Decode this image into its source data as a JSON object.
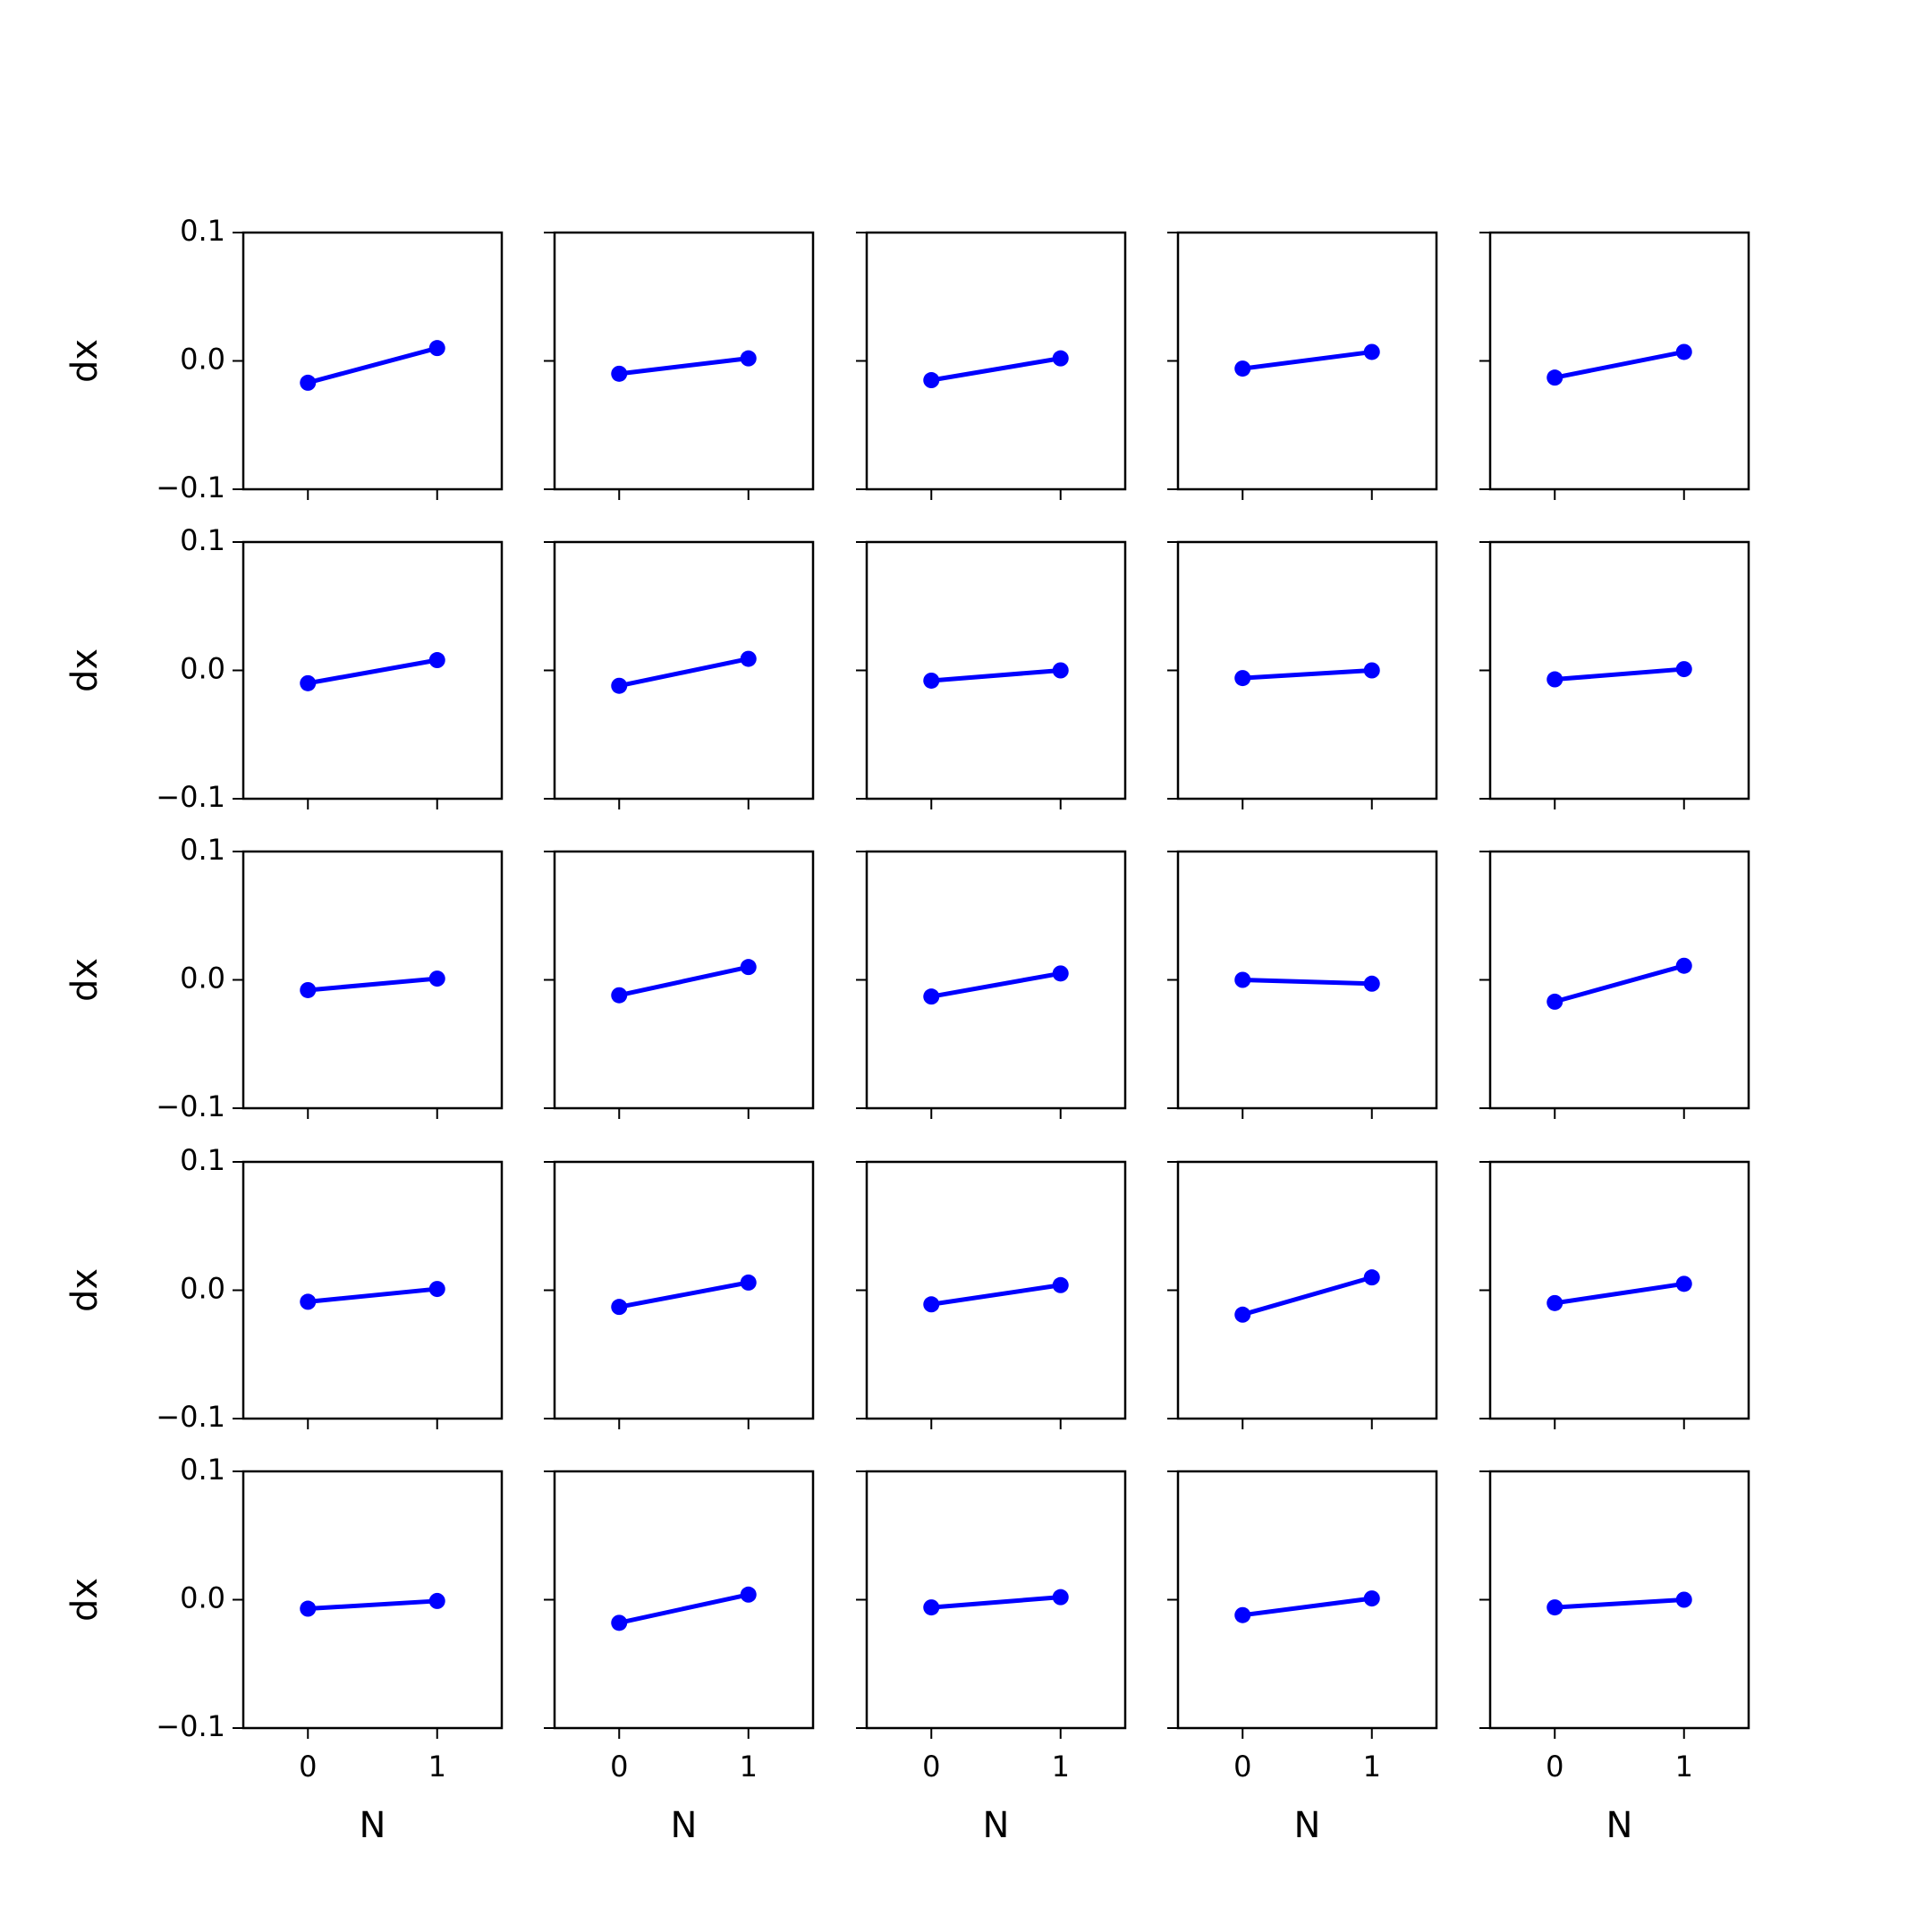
{
  "figure": {
    "line_color": "#0000ff",
    "axes_color": "#000000",
    "background": "#ffffff"
  },
  "shared": {
    "type": "line",
    "xlabel": "N",
    "ylabel": "dx",
    "xlim": [
      -0.5,
      1.5
    ],
    "ylim": [
      -0.1,
      0.1
    ],
    "xticks": [
      0,
      1
    ],
    "xtick_labels": [
      "0",
      "1"
    ],
    "yticks": [
      0.1,
      0.0,
      -0.1
    ],
    "ytick_labels": [
      "0.1",
      "0.0",
      "−0.1"
    ],
    "grid": false,
    "marker": "circle"
  },
  "chart_data": [
    {
      "type": "line",
      "x": [
        0,
        1
      ],
      "y": [
        -0.017,
        0.01
      ]
    },
    {
      "type": "line",
      "x": [
        0,
        1
      ],
      "y": [
        -0.01,
        0.002
      ]
    },
    {
      "type": "line",
      "x": [
        0,
        1
      ],
      "y": [
        -0.015,
        0.002
      ]
    },
    {
      "type": "line",
      "x": [
        0,
        1
      ],
      "y": [
        -0.006,
        0.007
      ]
    },
    {
      "type": "line",
      "x": [
        0,
        1
      ],
      "y": [
        -0.013,
        0.007
      ]
    },
    {
      "type": "line",
      "x": [
        0,
        1
      ],
      "y": [
        -0.01,
        0.008
      ]
    },
    {
      "type": "line",
      "x": [
        0,
        1
      ],
      "y": [
        -0.012,
        0.009
      ]
    },
    {
      "type": "line",
      "x": [
        0,
        1
      ],
      "y": [
        -0.008,
        0.0
      ]
    },
    {
      "type": "line",
      "x": [
        0,
        1
      ],
      "y": [
        -0.006,
        0.0
      ]
    },
    {
      "type": "line",
      "x": [
        0,
        1
      ],
      "y": [
        -0.007,
        0.001
      ]
    },
    {
      "type": "line",
      "x": [
        0,
        1
      ],
      "y": [
        -0.008,
        0.001
      ]
    },
    {
      "type": "line",
      "x": [
        0,
        1
      ],
      "y": [
        -0.012,
        0.01
      ]
    },
    {
      "type": "line",
      "x": [
        0,
        1
      ],
      "y": [
        -0.013,
        0.005
      ]
    },
    {
      "type": "line",
      "x": [
        0,
        1
      ],
      "y": [
        0.0,
        -0.003
      ]
    },
    {
      "type": "line",
      "x": [
        0,
        1
      ],
      "y": [
        -0.017,
        0.011
      ]
    },
    {
      "type": "line",
      "x": [
        0,
        1
      ],
      "y": [
        -0.009,
        0.001
      ]
    },
    {
      "type": "line",
      "x": [
        0,
        1
      ],
      "y": [
        -0.013,
        0.006
      ]
    },
    {
      "type": "line",
      "x": [
        0,
        1
      ],
      "y": [
        -0.011,
        0.004
      ]
    },
    {
      "type": "line",
      "x": [
        0,
        1
      ],
      "y": [
        -0.019,
        0.01
      ]
    },
    {
      "type": "line",
      "x": [
        0,
        1
      ],
      "y": [
        -0.01,
        0.005
      ]
    },
    {
      "type": "line",
      "x": [
        0,
        1
      ],
      "y": [
        -0.007,
        -0.001
      ]
    },
    {
      "type": "line",
      "x": [
        0,
        1
      ],
      "y": [
        -0.018,
        0.004
      ]
    },
    {
      "type": "line",
      "x": [
        0,
        1
      ],
      "y": [
        -0.006,
        0.002
      ]
    },
    {
      "type": "line",
      "x": [
        0,
        1
      ],
      "y": [
        -0.012,
        0.001
      ]
    },
    {
      "type": "line",
      "x": [
        0,
        1
      ],
      "y": [
        -0.006,
        0.0
      ]
    }
  ]
}
